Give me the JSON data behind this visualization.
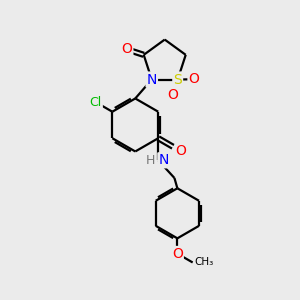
{
  "bg_color": "#ebebeb",
  "line_color": "#000000",
  "bond_width": 1.6,
  "atoms": {
    "S": {
      "color": "#cccc00",
      "size": 10
    },
    "N": {
      "color": "#0000ff",
      "size": 10
    },
    "O": {
      "color": "#ff0000",
      "size": 10
    },
    "Cl": {
      "color": "#00bb00",
      "size": 9
    },
    "H": {
      "color": "#777777",
      "size": 9
    }
  },
  "figsize": [
    3.0,
    3.0
  ],
  "dpi": 100,
  "xlim": [
    0,
    10
  ],
  "ylim": [
    0,
    10
  ]
}
